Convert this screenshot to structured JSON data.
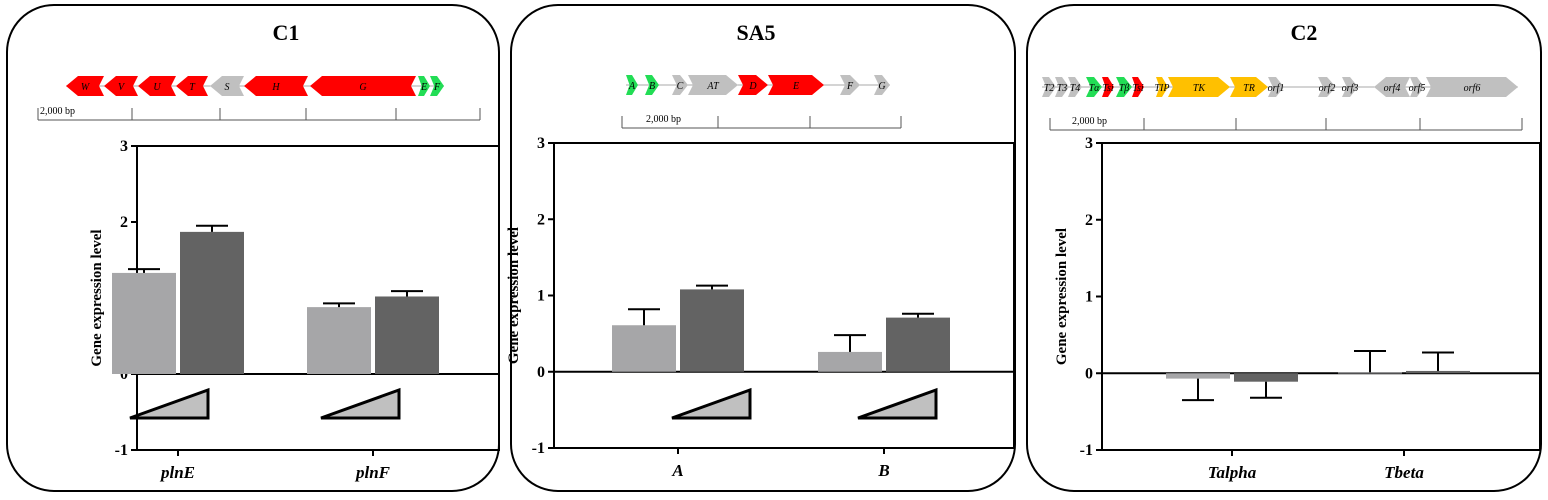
{
  "colors": {
    "red": "#ff0000",
    "green": "#22dd55",
    "gray": "#c0c0c0",
    "orange": "#ffc000",
    "bar_light": "#a6a6a8",
    "bar_dark": "#636363",
    "wedge": "#c0c0c0"
  },
  "panels": [
    {
      "title": "C1",
      "scale_label": "2,000  bp",
      "genes": [
        {
          "label": "W",
          "color": "red",
          "dir": "left"
        },
        {
          "label": "V",
          "color": "red",
          "dir": "left"
        },
        {
          "label": "U",
          "color": "red",
          "dir": "left"
        },
        {
          "label": "T",
          "color": "red",
          "dir": "left"
        },
        {
          "label": "S",
          "color": "gray",
          "dir": "left"
        },
        {
          "label": "H",
          "color": "red",
          "dir": "left"
        },
        {
          "label": "G",
          "color": "red",
          "dir": "left"
        },
        {
          "label": "E",
          "color": "green",
          "dir": "right"
        },
        {
          "label": "F",
          "color": "green",
          "dir": "right"
        }
      ]
    },
    {
      "title": "SA5",
      "scale_label": "2,000  bp",
      "genes": [
        {
          "label": "A",
          "color": "green",
          "dir": "right"
        },
        {
          "label": "B",
          "color": "green",
          "dir": "right"
        },
        {
          "label": "C",
          "color": "gray",
          "dir": "right"
        },
        {
          "label": "AT",
          "color": "gray",
          "dir": "right"
        },
        {
          "label": "D",
          "color": "red",
          "dir": "right"
        },
        {
          "label": "E",
          "color": "red",
          "dir": "right"
        },
        {
          "label": "F",
          "color": "gray",
          "dir": "right"
        },
        {
          "label": "G",
          "color": "gray",
          "dir": "right"
        }
      ]
    },
    {
      "title": "C2",
      "scale_label": "2,000  bp",
      "genes": [
        {
          "label": "T2",
          "color": "gray",
          "dir": "right"
        },
        {
          "label": "T3",
          "color": "gray",
          "dir": "right"
        },
        {
          "label": "T4",
          "color": "gray",
          "dir": "right"
        },
        {
          "label": "Tα",
          "color": "green",
          "dir": "right"
        },
        {
          "label": "Tsi",
          "color": "red",
          "dir": "right"
        },
        {
          "label": "Tβ",
          "color": "green",
          "dir": "right"
        },
        {
          "label": "Tsi",
          "color": "red",
          "dir": "right"
        },
        {
          "label": "TIP",
          "color": "orange",
          "dir": "right"
        },
        {
          "label": "TK",
          "color": "orange",
          "dir": "right"
        },
        {
          "label": "TR",
          "color": "orange",
          "dir": "right"
        },
        {
          "label": "orf1",
          "color": "gray",
          "dir": "right"
        },
        {
          "label": "orf2",
          "color": "gray",
          "dir": "right"
        },
        {
          "label": "orf3",
          "color": "gray",
          "dir": "right"
        },
        {
          "label": "orf4",
          "color": "gray",
          "dir": "left"
        },
        {
          "label": "orf5",
          "color": "gray",
          "dir": "right"
        },
        {
          "label": "orf6",
          "color": "gray",
          "dir": "right"
        }
      ]
    }
  ],
  "chart_data": [
    {
      "type": "bar",
      "ylabel": "Gene expression level",
      "ylim": [
        -1,
        3
      ],
      "yticks": [
        -1,
        0,
        1,
        2,
        3
      ],
      "categories": [
        "plnE",
        "plnF"
      ],
      "series": [
        {
          "values": [
            1.33,
            0.88
          ],
          "errors": [
            0.05,
            0.05
          ],
          "color": "bar_light"
        },
        {
          "values": [
            1.87,
            1.02
          ],
          "errors": [
            0.08,
            0.07
          ],
          "color": "bar_dark"
        }
      ]
    },
    {
      "type": "bar",
      "ylabel": "Gene expression level",
      "ylim": [
        -1,
        3
      ],
      "yticks": [
        -1,
        0,
        1,
        2,
        3
      ],
      "categories": [
        "A",
        "B"
      ],
      "series": [
        {
          "values": [
            0.61,
            0.26
          ],
          "errors": [
            0.21,
            0.22
          ],
          "color": "bar_light"
        },
        {
          "values": [
            1.08,
            0.71
          ],
          "errors": [
            0.05,
            0.05
          ],
          "color": "bar_dark"
        }
      ]
    },
    {
      "type": "bar",
      "ylabel": "Gene expression level",
      "ylim": [
        -1,
        3
      ],
      "yticks": [
        -1,
        0,
        1,
        2,
        3
      ],
      "categories": [
        "Talpha",
        "Tbeta"
      ],
      "series": [
        {
          "values": [
            -0.07,
            0.01
          ],
          "errors": [
            0.28,
            0.28
          ],
          "color": "bar_light"
        },
        {
          "values": [
            -0.11,
            0.03
          ],
          "errors": [
            0.21,
            0.24
          ],
          "color": "bar_dark"
        }
      ]
    }
  ]
}
